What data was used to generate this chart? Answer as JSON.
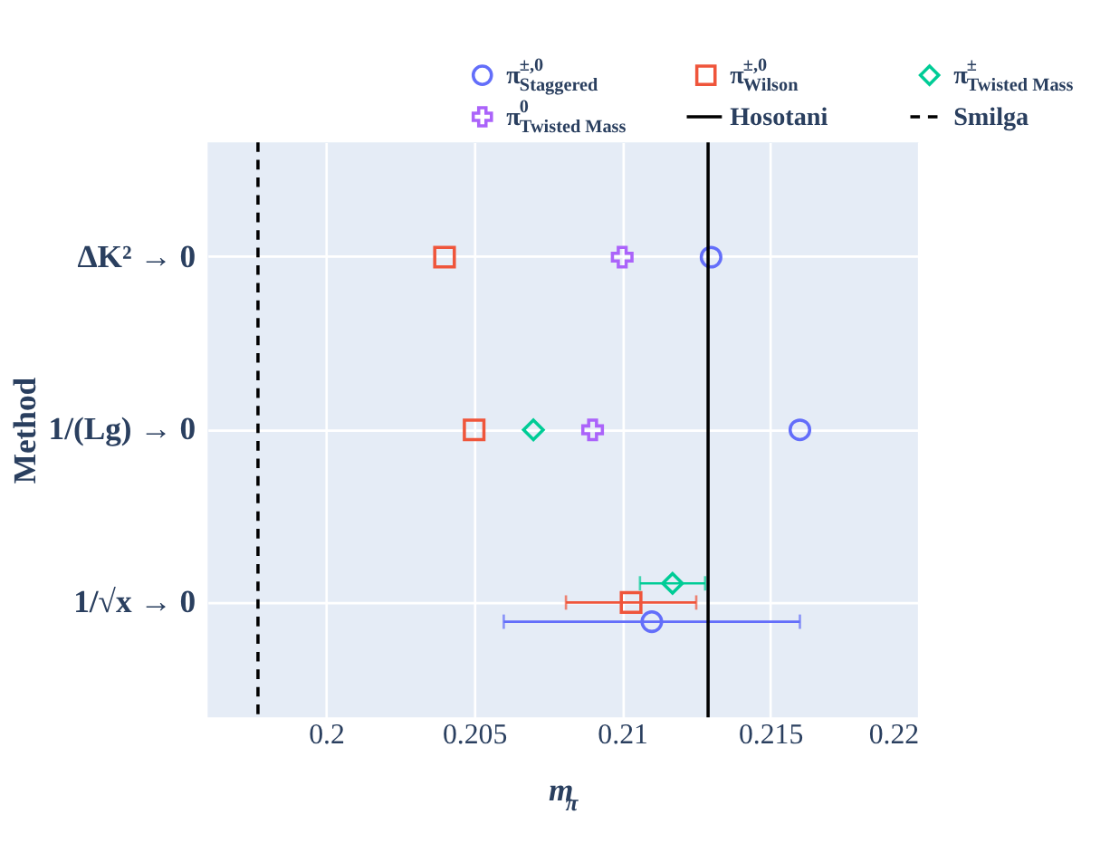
{
  "chart_data": {
    "type": "scatter",
    "orientation": "horizontal",
    "xlabel": "m$_{π}$",
    "ylabel": "Method",
    "categories": [
      "ΔK² → 0",
      "1/(Lg) → 0",
      "1/√x → 0"
    ],
    "series": [
      {
        "name": "π$^{±,0}$$_{Staggered}$",
        "color": "#636efa",
        "marker": "circle",
        "values": [
          0.213,
          0.216,
          0.211
        ],
        "errors": [
          null,
          null,
          [
            0.206,
            0.216
          ]
        ]
      },
      {
        "name": "π$^{±,0}$$_{Wilson}$",
        "color": "#ef553b",
        "marker": "square",
        "values": [
          0.204,
          0.205,
          0.2103
        ],
        "errors": [
          null,
          null,
          [
            0.2081,
            0.2125
          ]
        ]
      },
      {
        "name": "π$^{±}$$_{Twisted Mass}$",
        "color": "#00cc96",
        "marker": "diamond",
        "values": [
          null,
          0.207,
          0.2117
        ],
        "errors": [
          null,
          null,
          [
            0.2106,
            0.2128
          ]
        ]
      },
      {
        "name": "π$^{0}$$_{Twisted Mass}$",
        "color": "#ab63fa",
        "marker": "cross",
        "values": [
          0.21,
          0.209,
          null
        ]
      }
    ],
    "ref_lines": [
      {
        "axis": "x",
        "value": 0.2129,
        "label": "Hosotani",
        "color": "#000000",
        "line_style": "solid"
      },
      {
        "axis": "x",
        "value": 0.1977,
        "label": "Smilga",
        "color": "#000000",
        "line_style": "dashed"
      }
    ],
    "xlim": [
      0.196,
      0.22
    ],
    "xticks": [
      0.2,
      0.205,
      0.21,
      0.215,
      0.22
    ],
    "grid": true,
    "legend": "top"
  }
}
